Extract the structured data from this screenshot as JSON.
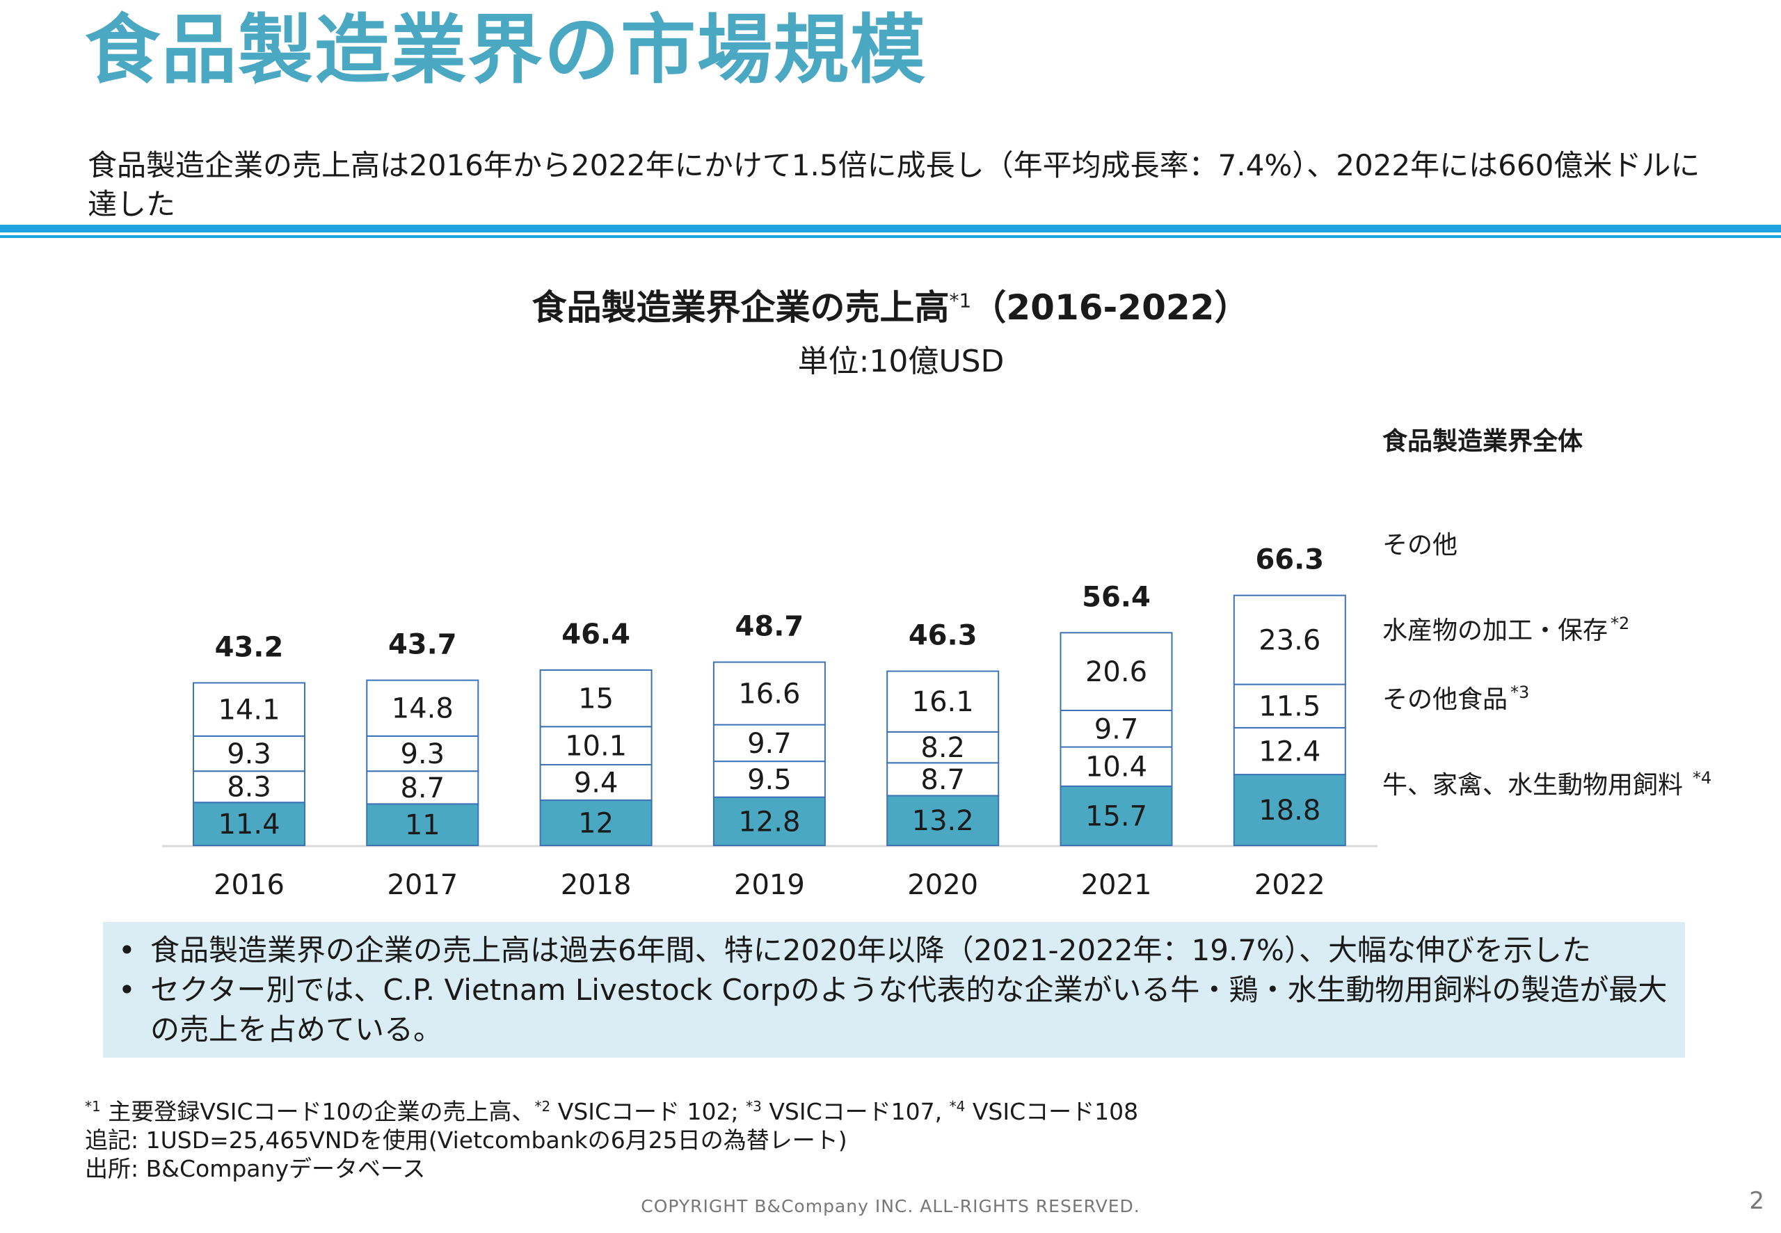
{
  "page": {
    "title": "食品製造業界の市場規模",
    "lead": "食品製造企業の売上高は2016年から2022年にかけて1.5倍に成長し（年平均成長率：7.4%）、2022年には660億米ドルに達した",
    "chart_title": "食品製造業界企業の売上高",
    "chart_title_fn": "*1",
    "chart_title_range": "（2016-2022）",
    "unit": "単位:10億USD",
    "bullet": "•",
    "notes": [
      "食品製造業界の企業の売上高は過去6年間、特に2020年以降（2021-2022年：19.7%）、大幅な伸びを示した",
      "セクター別では、C.P. Vietnam Livestock Corpのような代表的な企業がいる牛・鶏・水生動物用飼料の製造が最大の売上を占めている。"
    ],
    "footnote_line1": {
      "m1": "*1",
      "t1": " 主要登録VSICコード10の企業の売上高、",
      "m2": "*2",
      "t2": " VSICコード 102; ",
      "m3": "*3",
      "t3": " VSICコード107, ",
      "m4": "*4",
      "t4": " VSICコード108"
    },
    "footnote_line2": "追記: 1USD=25,465VNDを使用(Vietcombankの6月25日の為替レート)",
    "footnote_line3": "出所: B&Companyデータベース",
    "copyright": "COPYRIGHT B&Company INC. ALL-RIGHTS RESERVED.",
    "page_number": "2"
  },
  "chart_data": {
    "type": "bar",
    "stacked": true,
    "categories": [
      "2016",
      "2017",
      "2018",
      "2019",
      "2020",
      "2021",
      "2022"
    ],
    "series": [
      {
        "name": "牛、家禽、水生動物用飼料",
        "name_fn": "*4",
        "values": [
          11.4,
          11.0,
          12.0,
          12.8,
          13.2,
          15.7,
          18.8
        ],
        "color": "#4aa8c2"
      },
      {
        "name": "その他食品",
        "name_fn": "*3",
        "values": [
          8.3,
          8.7,
          9.4,
          9.5,
          8.7,
          10.4,
          12.4
        ],
        "color": "#ffffff"
      },
      {
        "name": "水産物の加工・保存",
        "name_fn": "*2",
        "values": [
          9.3,
          9.3,
          10.1,
          9.7,
          8.2,
          9.7,
          11.5
        ],
        "color": "#ffffff"
      },
      {
        "name": "その他",
        "name_fn": "",
        "values": [
          14.1,
          14.8,
          15.0,
          16.6,
          16.1,
          20.6,
          23.6
        ],
        "color": "#ffffff"
      }
    ],
    "totals": [
      "43.2",
      "43.7",
      "46.4",
      "48.7",
      "46.3",
      "56.4",
      "66.3"
    ],
    "total_label": "食品製造業界全体",
    "legend_position": "right",
    "border_color": "#3d73b6",
    "grid": false
  }
}
